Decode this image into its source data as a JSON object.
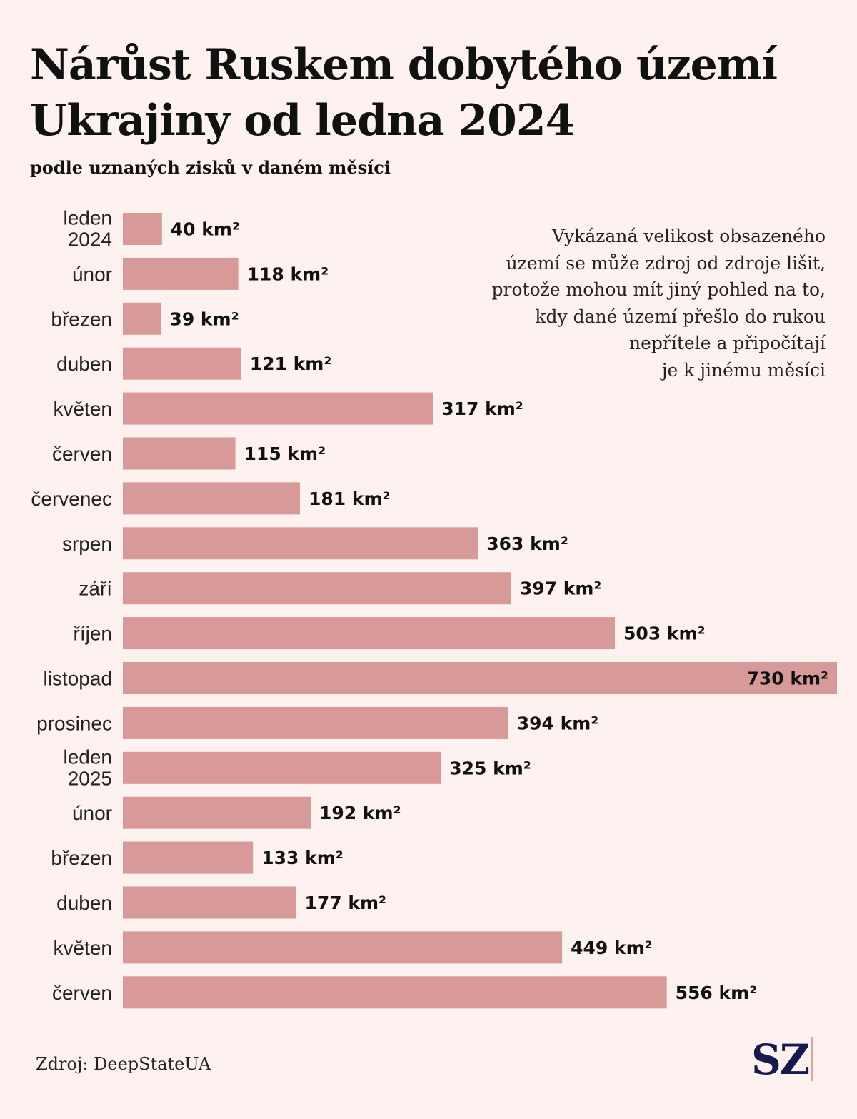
{
  "title": "Nárůst Ruskem dobytého území Ukrajiny od ledna 2024",
  "subtitle": "podle uznaných zisků v daném měsíci",
  "note": "Vykázaná velikost obsazeného\núzemí se může zdroj od zdroje lišit,\nprotože mohou mít jiný pohled na to,\nkdy dané území přešlo do rukou\nnepřítele a připočítají\nje k jinému měsíci",
  "source": "Zdroj: DeepStateUA",
  "logo": "SZ",
  "colors": {
    "bar": "#d89a98",
    "background": "#fdf2f0",
    "label_inside": "#ffffff",
    "logo": "#17194a"
  },
  "chart_data": {
    "type": "bar",
    "orientation": "horizontal",
    "unit": "km²",
    "categories": [
      [
        "leden",
        "2024"
      ],
      [
        "únor"
      ],
      [
        "březen"
      ],
      [
        "duben"
      ],
      [
        "květen"
      ],
      [
        "červen"
      ],
      [
        "červenec"
      ],
      [
        "srpen"
      ],
      [
        "září"
      ],
      [
        "říjen"
      ],
      [
        "listopad"
      ],
      [
        "prosinec"
      ],
      [
        "leden",
        "2025"
      ],
      [
        "únor"
      ],
      [
        "březen"
      ],
      [
        "duben"
      ],
      [
        "květen"
      ],
      [
        "červen"
      ]
    ],
    "values": [
      40,
      118,
      39,
      121,
      317,
      115,
      181,
      363,
      397,
      503,
      730,
      394,
      325,
      192,
      133,
      177,
      449,
      556
    ],
    "value_labels": [
      "40 km²",
      "118 km²",
      "39 km²",
      "121 km²",
      "317 km²",
      "115 km²",
      "181 km²",
      "363 km²",
      "397 km²",
      "503 km²",
      "730 km²",
      "394 km²",
      "325 km²",
      "192 km²",
      "133 km²",
      "177 km²",
      "449 km²",
      "556 km²"
    ],
    "xlim": [
      0,
      730
    ],
    "grid": false,
    "legend": "none"
  }
}
